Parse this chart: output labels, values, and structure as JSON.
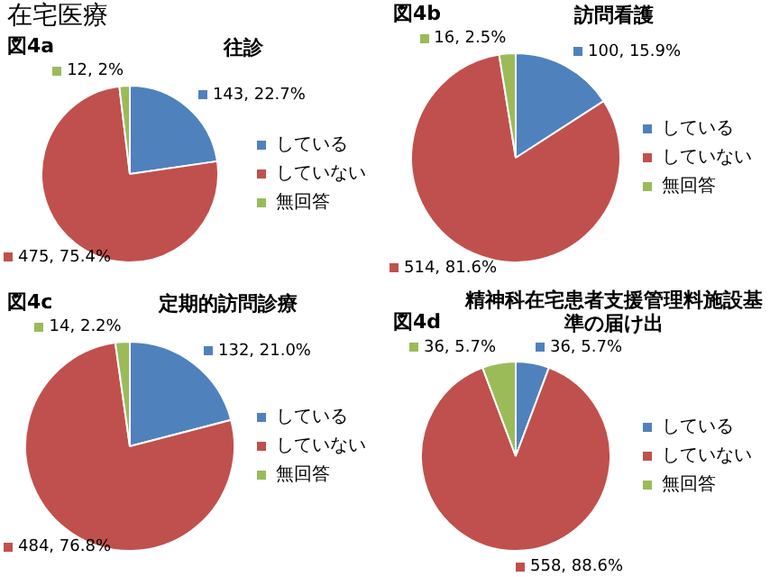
{
  "chart_data": [
    {
      "type": "pie",
      "title": "往診",
      "annotations": [
        "在宅医療",
        "図4a"
      ],
      "categories": [
        "している",
        "していない",
        "無回答"
      ],
      "values": [
        143,
        475,
        12
      ],
      "colors": [
        "#4f81bd",
        "#c0504d",
        "#9bbb59"
      ],
      "value_labels": [
        "143, 22.7%",
        "475, 75.4%",
        "12, 2%"
      ],
      "legend": "right"
    },
    {
      "type": "pie",
      "title": "訪問看護",
      "annotations": [
        "図4b"
      ],
      "categories": [
        "している",
        "していない",
        "無回答"
      ],
      "values": [
        100,
        514,
        16
      ],
      "colors": [
        "#4f81bd",
        "#c0504d",
        "#9bbb59"
      ],
      "value_labels": [
        "100, 15.9%",
        "514, 81.6%",
        "16, 2.5%"
      ],
      "legend": "right"
    },
    {
      "type": "pie",
      "title": "定期的訪問診療",
      "annotations": [
        "図4c"
      ],
      "categories": [
        "している",
        "していない",
        "無回答"
      ],
      "values": [
        132,
        484,
        14
      ],
      "colors": [
        "#4f81bd",
        "#c0504d",
        "#9bbb59"
      ],
      "value_labels": [
        "132, 21.0%",
        "484, 76.8%",
        "14, 2.2%"
      ],
      "legend": "right"
    },
    {
      "type": "pie",
      "title": "精神科在宅患者支援管理料施設基準の届け出",
      "annotations": [
        "図4d"
      ],
      "categories": [
        "している",
        "していない",
        "無回答"
      ],
      "values": [
        36,
        558,
        36
      ],
      "colors": [
        "#4f81bd",
        "#c0504d",
        "#9bbb59"
      ],
      "value_labels": [
        "36, 5.7%",
        "558, 88.6%",
        "36, 5.7%"
      ],
      "legend": "right"
    }
  ]
}
